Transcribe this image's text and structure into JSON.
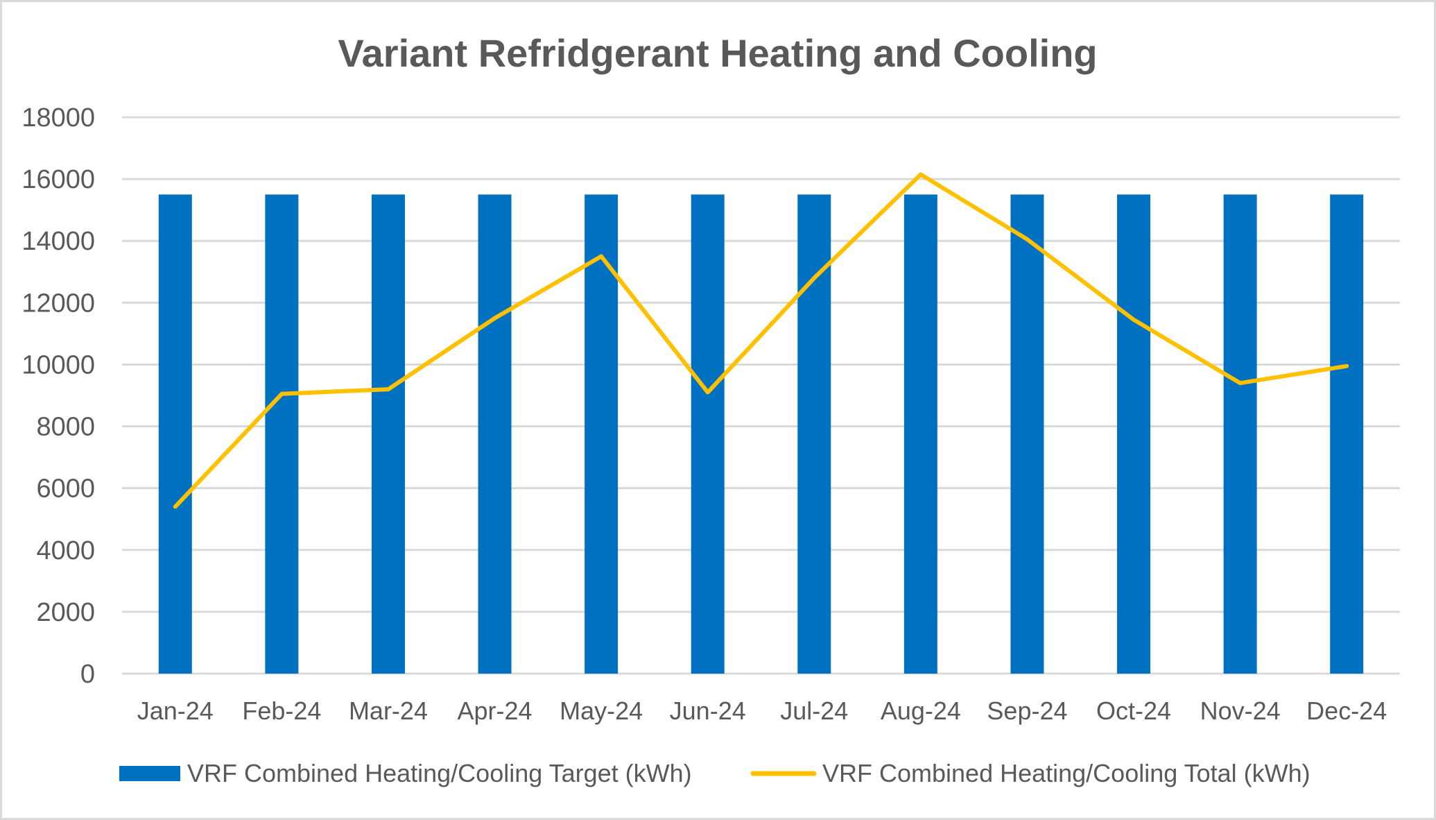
{
  "chart_data": {
    "type": "bar",
    "title": "Variant Refridgerant Heating and Cooling",
    "xlabel": "",
    "ylabel": "",
    "ylim": [
      0,
      18000
    ],
    "yticks": [
      "0",
      "2000",
      "4000",
      "6000",
      "8000",
      "10000",
      "12000",
      "14000",
      "16000",
      "18000"
    ],
    "ytick_values": [
      0,
      2000,
      4000,
      6000,
      8000,
      10000,
      12000,
      14000,
      16000,
      18000
    ],
    "grid": true,
    "legend_position": "bottom",
    "categories": [
      "Jan-24",
      "Feb-24",
      "Mar-24",
      "Apr-24",
      "May-24",
      "Jun-24",
      "Jul-24",
      "Aug-24",
      "Sep-24",
      "Oct-24",
      "Nov-24",
      "Dec-24"
    ],
    "series": [
      {
        "name": "VRF Combined Heating/Cooling Target (kWh)",
        "type": "bar",
        "color": "#0070C0",
        "values": [
          15500,
          15500,
          15500,
          15500,
          15500,
          15500,
          15500,
          15500,
          15500,
          15500,
          15500,
          15500
        ]
      },
      {
        "name": "VRF Combined Heating/Cooling Total (kWh)",
        "type": "line",
        "color": "#FFC000",
        "values": [
          5400,
          9050,
          9200,
          11500,
          13500,
          9100,
          12800,
          16150,
          14050,
          11450,
          9400,
          9950
        ]
      }
    ]
  }
}
